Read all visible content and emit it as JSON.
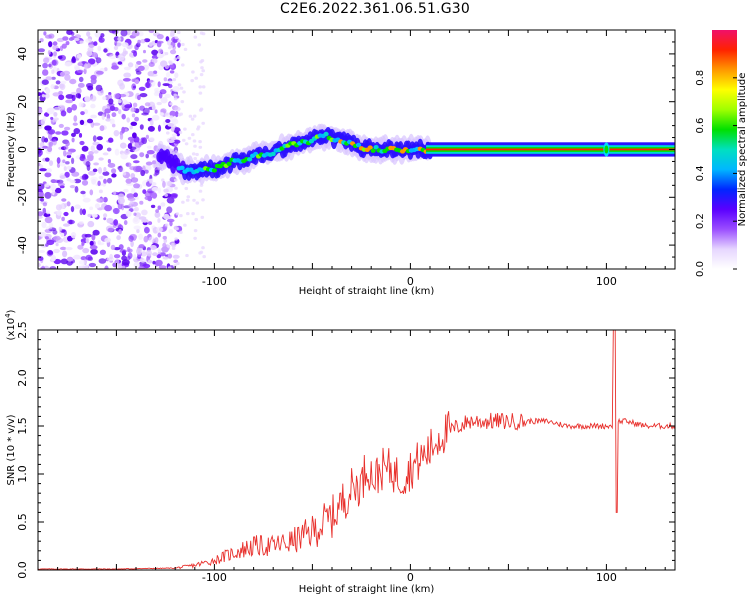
{
  "title": "C2E6.2022.361.06.51.G30",
  "chart_data": [
    {
      "type": "heatmap",
      "xlabel": "Height of straight line (km)",
      "ylabel": "Frequency (Hz)",
      "xlim": [
        -190,
        135
      ],
      "ylim": [
        -50,
        50
      ],
      "xticks": [
        -100,
        0,
        100
      ],
      "yticks": [
        -40,
        -20,
        0,
        20,
        40
      ],
      "colorbar": {
        "label": "Normalized spectral amplitude",
        "range": [
          0,
          1
        ],
        "ticks": [
          "0.0",
          "0.2",
          "0.4",
          "0.6",
          "0.8"
        ],
        "colors": [
          "#ffffff",
          "#e6d6ff",
          "#9a4dff",
          "#5a00ff",
          "#0026ff",
          "#00b7ff",
          "#00e0c0",
          "#00e000",
          "#a0ff00",
          "#ffff00",
          "#ff9900",
          "#ff2200",
          "#f0106a"
        ]
      },
      "ridge": {
        "description_free": true,
        "x": [
          -125,
          -115,
          -100,
          -90,
          -80,
          -70,
          -60,
          -50,
          -45,
          -40,
          -35,
          -30,
          -25,
          -20,
          -15,
          -10,
          -5,
          0,
          5,
          10,
          20,
          40,
          60,
          80,
          100,
          105,
          120,
          135
        ],
        "y": [
          -3,
          -9,
          -8,
          -5,
          -3,
          -1,
          2,
          4,
          6,
          5,
          4,
          3,
          1,
          0,
          0,
          0,
          0,
          0,
          0,
          0,
          0,
          0,
          0,
          0,
          0,
          0,
          0,
          0
        ]
      }
    },
    {
      "type": "line",
      "xlabel": "Height of straight line (km)",
      "ylabel": "SNR (10 * v/v)",
      "yscale_label": "(x10",
      "yscale_exp": "4",
      "yscale_close": ")",
      "xlim": [
        -190,
        135
      ],
      "ylim": [
        0,
        2.5
      ],
      "xticks": [
        -100,
        0,
        100
      ],
      "yticks": [
        "0.0",
        "0.5",
        "1.0",
        "1.5",
        "2.0",
        "2.5"
      ],
      "line_color": "#e8302c",
      "series": [
        {
          "x": [
            -190,
            -150,
            -120,
            -110,
            -100,
            -90,
            -80,
            -70,
            -60,
            -50,
            -40,
            -35,
            -30,
            -25,
            -22,
            -20,
            -18,
            -15,
            -10,
            -5,
            0,
            5,
            10,
            15,
            20,
            25,
            30,
            35,
            40,
            50,
            60,
            70,
            80,
            90,
            100,
            103,
            104,
            105,
            106,
            110,
            120,
            135
          ],
          "y": [
            0.01,
            0.01,
            0.02,
            0.05,
            0.1,
            0.18,
            0.25,
            0.25,
            0.3,
            0.4,
            0.55,
            0.7,
            0.85,
            0.9,
            1.1,
            1.0,
            0.95,
            1.05,
            1.05,
            0.95,
            1.05,
            1.15,
            1.25,
            1.4,
            1.45,
            1.5,
            1.55,
            1.55,
            1.55,
            1.55,
            1.55,
            1.55,
            1.5,
            1.5,
            1.5,
            1.5,
            2.5,
            0.6,
            1.55,
            1.55,
            1.5,
            1.5
          ]
        }
      ]
    }
  ]
}
